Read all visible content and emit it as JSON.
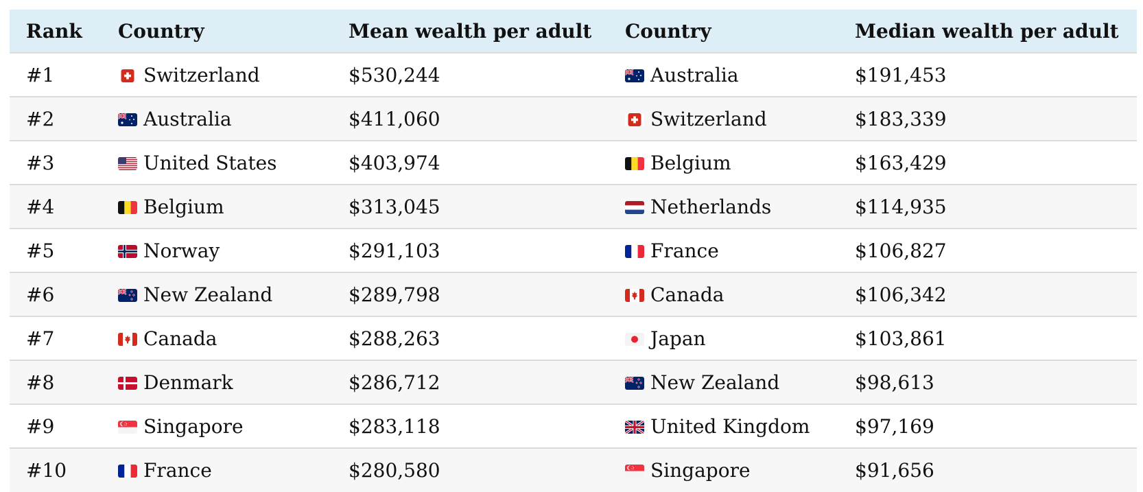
{
  "chart_data": {
    "type": "table",
    "columns": [
      "Rank",
      "Country",
      "Mean wealth per adult",
      "Country",
      "Median wealth per adult"
    ],
    "rows": [
      {
        "rank": "#1",
        "mean_country": "Switzerland",
        "mean_flag": "ch",
        "mean_value": "$530,244",
        "median_country": "Australia",
        "median_flag": "au",
        "median_value": "$191,453"
      },
      {
        "rank": "#2",
        "mean_country": "Australia",
        "mean_flag": "au",
        "mean_value": "$411,060",
        "median_country": "Switzerland",
        "median_flag": "ch",
        "median_value": "$183,339"
      },
      {
        "rank": "#3",
        "mean_country": "United States",
        "mean_flag": "us",
        "mean_value": "$403,974",
        "median_country": "Belgium",
        "median_flag": "be",
        "median_value": "$163,429"
      },
      {
        "rank": "#4",
        "mean_country": "Belgium",
        "mean_flag": "be",
        "mean_value": "$313,045",
        "median_country": "Netherlands",
        "median_flag": "nl",
        "median_value": "$114,935"
      },
      {
        "rank": "#5",
        "mean_country": "Norway",
        "mean_flag": "no",
        "mean_value": "$291,103",
        "median_country": "France",
        "median_flag": "fr",
        "median_value": "$106,827"
      },
      {
        "rank": "#6",
        "mean_country": "New Zealand",
        "mean_flag": "nz",
        "mean_value": "$289,798",
        "median_country": "Canada",
        "median_flag": "ca",
        "median_value": "$106,342"
      },
      {
        "rank": "#7",
        "mean_country": "Canada",
        "mean_flag": "ca",
        "mean_value": "$288,263",
        "median_country": "Japan",
        "median_flag": "jp",
        "median_value": "$103,861"
      },
      {
        "rank": "#8",
        "mean_country": "Denmark",
        "mean_flag": "dk",
        "mean_value": "$286,712",
        "median_country": "New Zealand",
        "median_flag": "nz",
        "median_value": "$98,613"
      },
      {
        "rank": "#9",
        "mean_country": "Singapore",
        "mean_flag": "sg",
        "mean_value": "$283,118",
        "median_country": "United Kingdom",
        "median_flag": "gb",
        "median_value": "$97,169"
      },
      {
        "rank": "#10",
        "mean_country": "France",
        "mean_flag": "fr",
        "mean_value": "$280,580",
        "median_country": "Singapore",
        "median_flag": "sg",
        "median_value": "$91,656"
      }
    ]
  },
  "colors": {
    "header_bg": "#deeef6",
    "row_alt_bg": "#f7f7f7",
    "row_border": "#dcdcdc"
  }
}
